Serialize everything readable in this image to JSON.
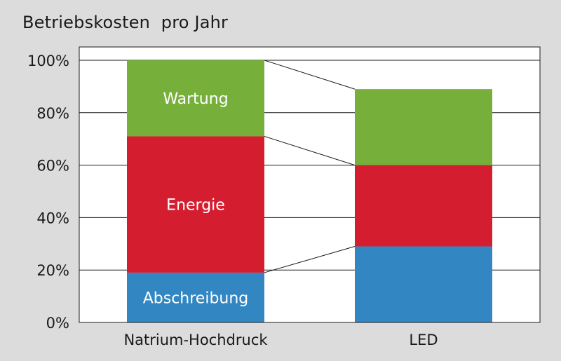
{
  "chart_data": {
    "type": "bar",
    "stacked": true,
    "title": "Betriebskosten  pro Jahr",
    "categories": [
      "Natrium-Hochdruck",
      "LED"
    ],
    "series": [
      {
        "name": "Abschreibung",
        "values": [
          19,
          29
        ],
        "color": "#3287c3"
      },
      {
        "name": "Energie",
        "values": [
          52,
          31
        ],
        "color": "#d41e30"
      },
      {
        "name": "Wartung",
        "values": [
          29,
          29
        ],
        "color": "#76b03b"
      }
    ],
    "segment_labels_on": "Natrium-Hochdruck",
    "yticks": [
      "0%",
      "20%",
      "40%",
      "60%",
      "80%",
      "100%"
    ],
    "ylim": [
      0,
      100
    ],
    "grid": true,
    "connector_lines": true,
    "colors": {
      "background": "#dcdcdc",
      "plot_background": "#ffffff",
      "gridline": "#1a1a1a"
    }
  }
}
